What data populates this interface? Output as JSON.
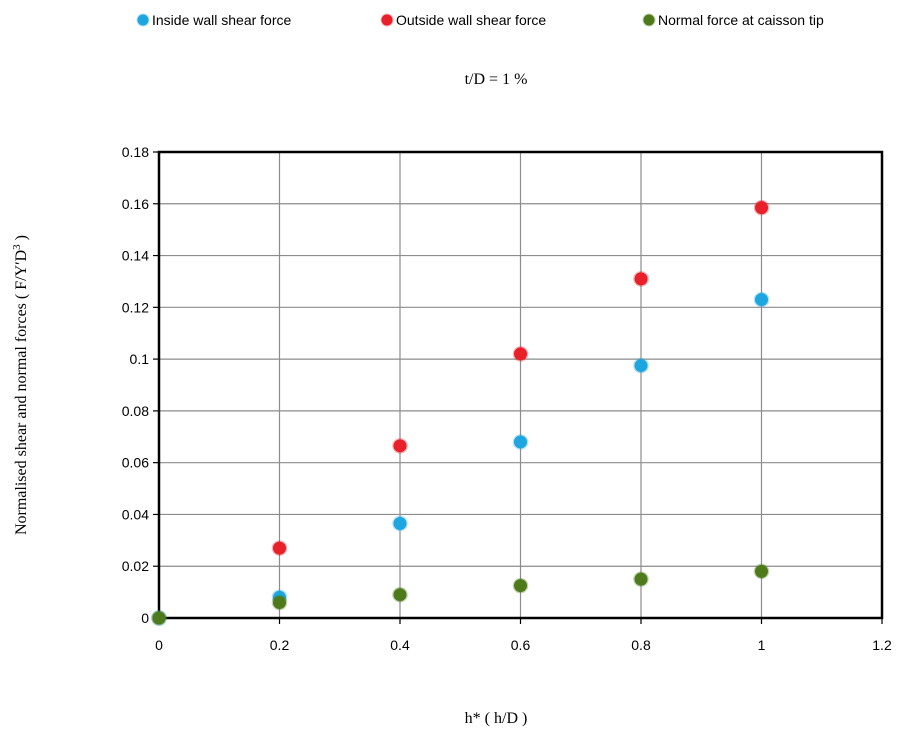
{
  "chart_data": {
    "type": "scatter",
    "title": "t/D = 1 %",
    "xlabel": "h* ( h/D )",
    "ylabel": "Normalised shear and normal forces ( F/Y′D",
    "ylabel_sup": "3",
    "ylabel_end": " )",
    "xlim": [
      0,
      1.2
    ],
    "ylim": [
      0,
      0.18
    ],
    "xticks": [
      "0",
      "0.2",
      "0.4",
      "0.6",
      "0.8",
      "1",
      "1.2"
    ],
    "yticks": [
      "0",
      "0.02",
      "0.04",
      "0.06",
      "0.08",
      "0.1",
      "0.12",
      "0.14",
      "0.16",
      "0.18"
    ],
    "grid": true,
    "legend_position": "top",
    "series": [
      {
        "name": "Inside wall shear force",
        "color": "#1ea6e0",
        "x": [
          0,
          0.2,
          0.4,
          0.6,
          0.8,
          1.0
        ],
        "y": [
          0,
          0.008,
          0.0365,
          0.068,
          0.0975,
          0.123
        ]
      },
      {
        "name": "Outside wall shear force",
        "color": "#e8202a",
        "x": [
          0.2,
          0.4,
          0.6,
          0.8,
          1.0
        ],
        "y": [
          0.027,
          0.0665,
          0.102,
          0.131,
          0.1585
        ]
      },
      {
        "name": "Normal force at caisson tip",
        "color": "#4e7a1c",
        "x": [
          0,
          0.2,
          0.4,
          0.6,
          0.8,
          1.0
        ],
        "y": [
          0,
          0.006,
          0.009,
          0.0125,
          0.015,
          0.018
        ]
      }
    ]
  }
}
